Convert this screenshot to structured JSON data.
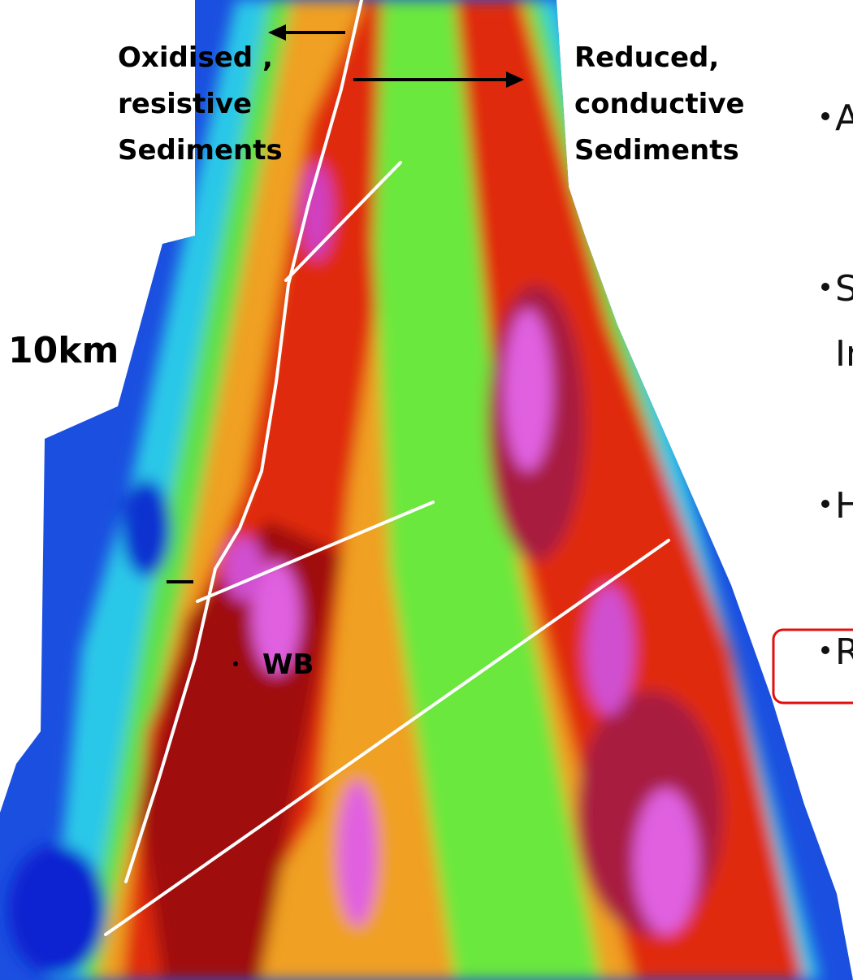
{
  "labels": {
    "oxidised": [
      "Oxidised ,",
      "resistive",
      "Sediments"
    ],
    "reduced": [
      "Reduced,",
      "conductive",
      "Sediments"
    ]
  },
  "scale": "10km",
  "site": "WB",
  "bullets": [
    {
      "lines": [
        "A"
      ]
    },
    {
      "lines": [
        "S",
        "In"
      ]
    },
    {
      "lines": [
        "H"
      ]
    },
    {
      "lines": [
        "R"
      ]
    }
  ]
}
